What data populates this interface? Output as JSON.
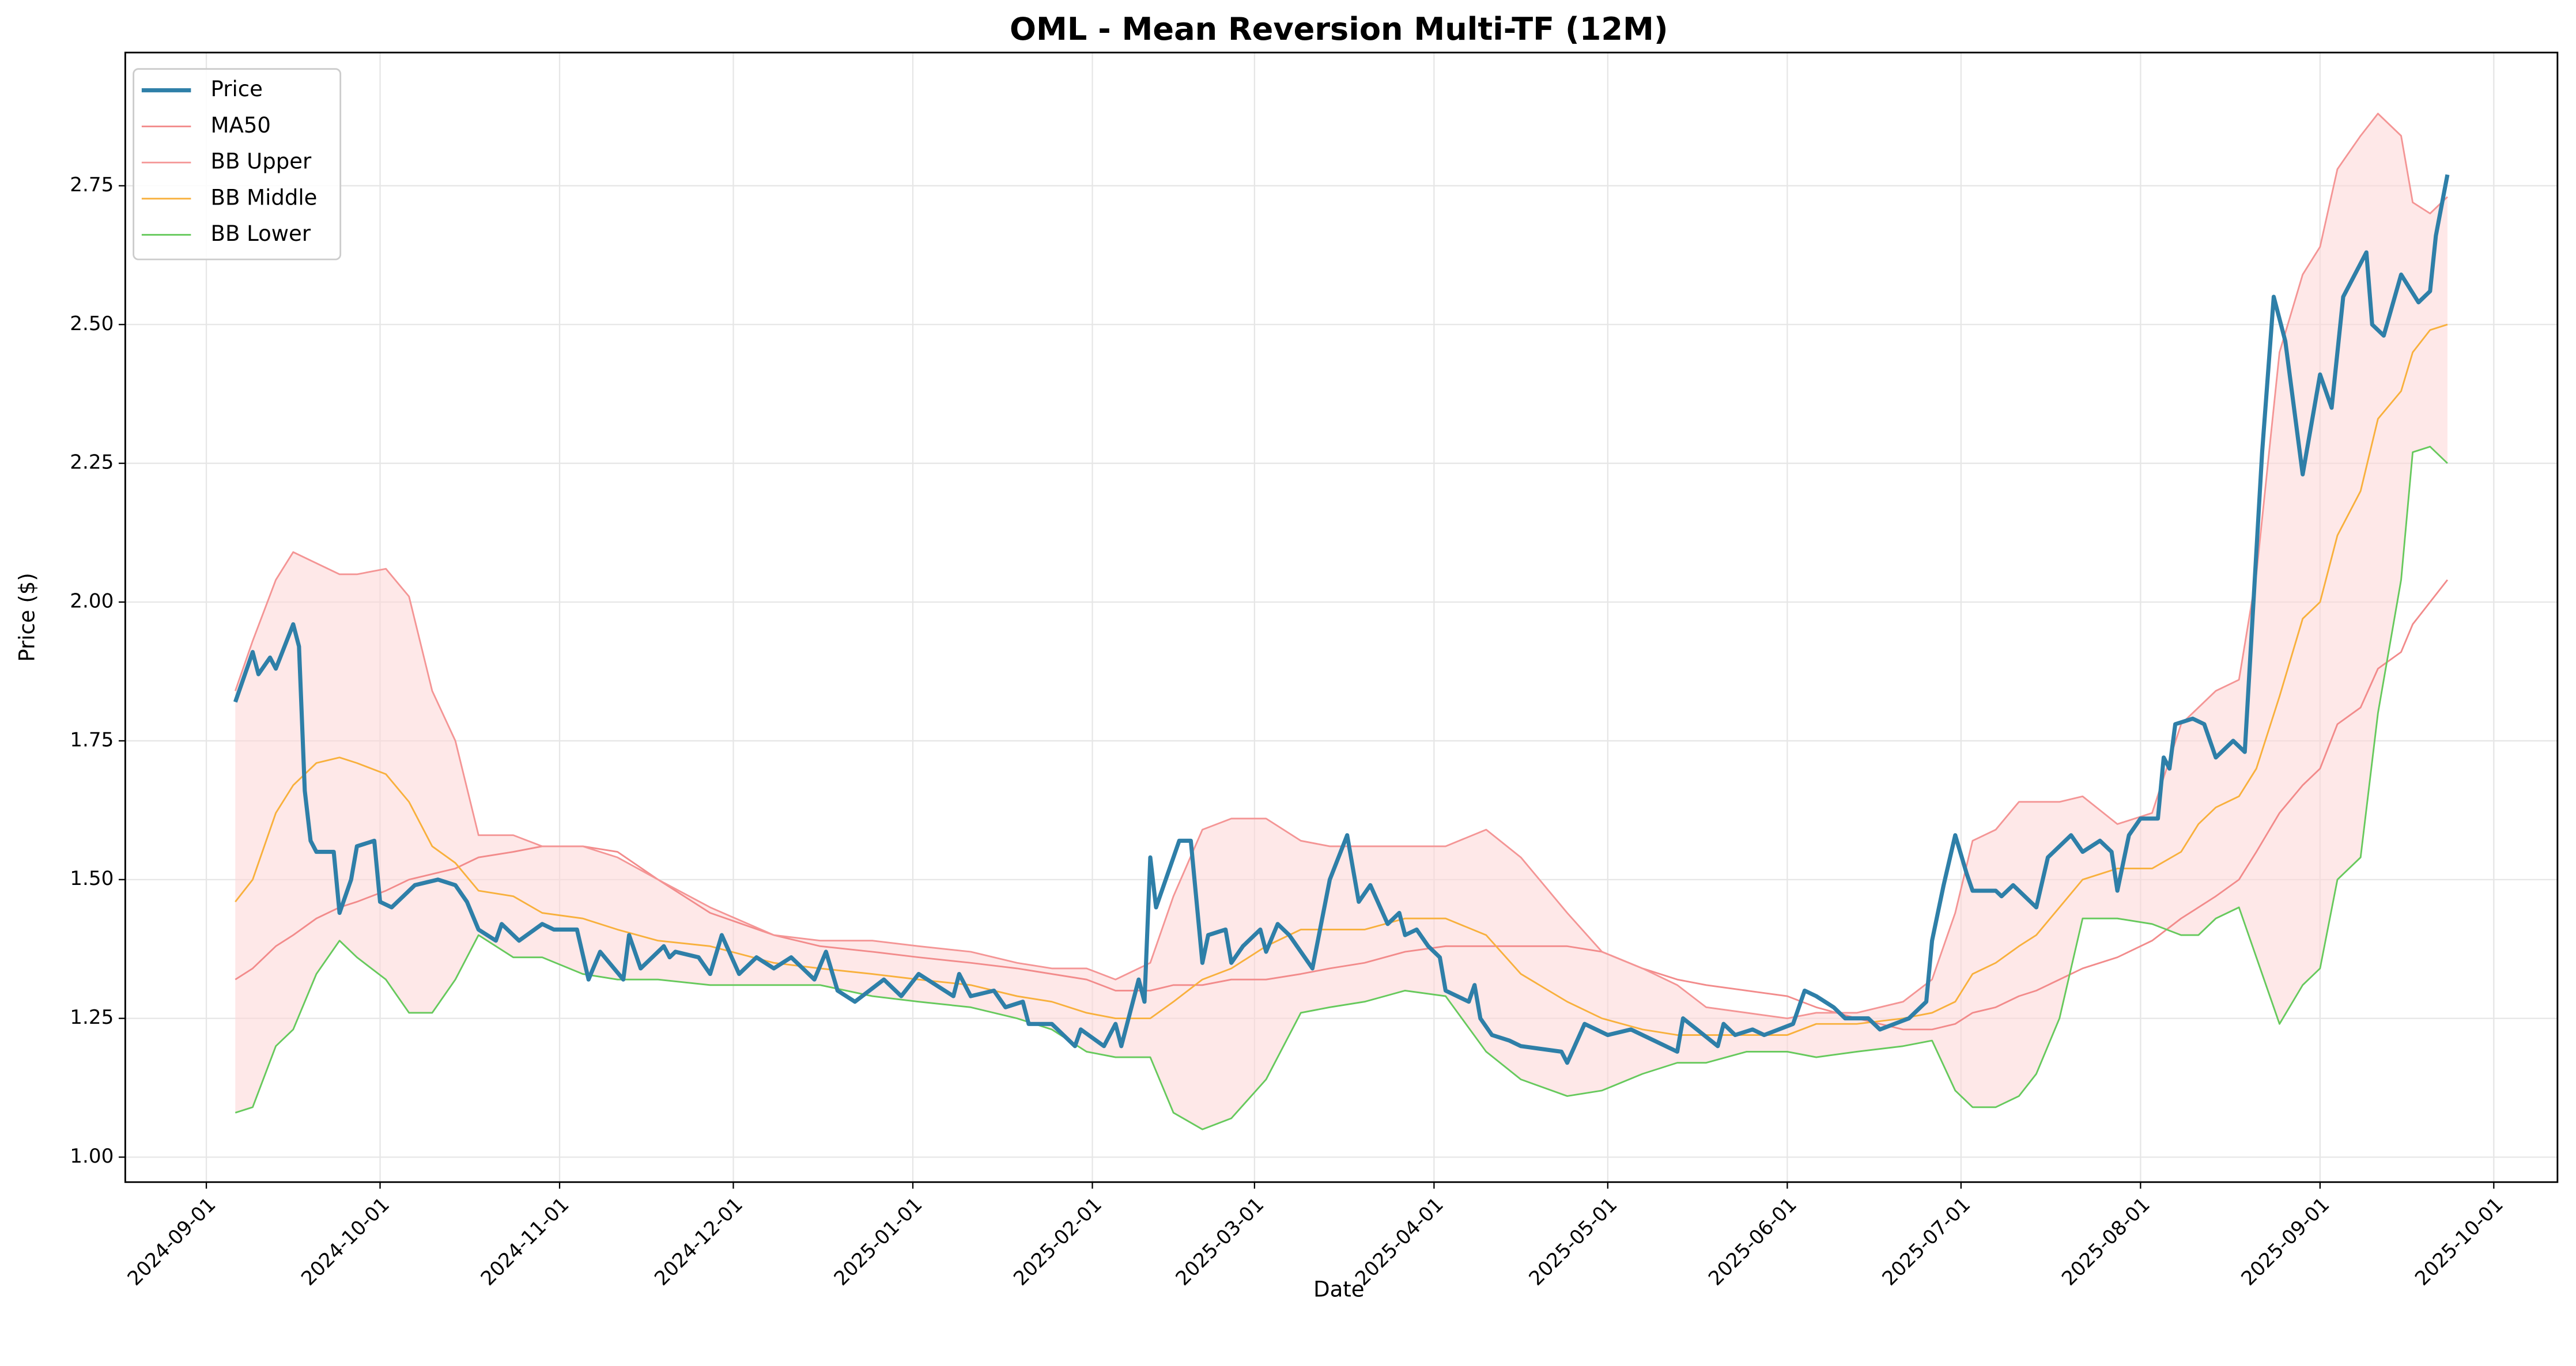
{
  "chart_data": {
    "type": "line",
    "title": "OML - Mean Reversion Multi-TF (12M)",
    "x_label": "Date",
    "y_label": "Price ($)",
    "xlim": [
      "2024-08-18",
      "2025-10-12"
    ],
    "xticks": [
      "2024-09-01",
      "2024-10-01",
      "2024-11-01",
      "2024-12-01",
      "2025-01-01",
      "2025-02-01",
      "2025-03-01",
      "2025-04-01",
      "2025-05-01",
      "2025-06-01",
      "2025-07-01",
      "2025-08-01",
      "2025-09-01",
      "2025-10-01"
    ],
    "ylim": [
      0.955,
      2.99
    ],
    "yticks": [
      {
        "value": 1,
        "label": "1.00"
      },
      1.25,
      {
        "value": 1.5,
        "label": "1.50"
      },
      1.75,
      {
        "value": 2,
        "label": "2.00"
      },
      2.25,
      {
        "value": 2.5,
        "label": "2.50"
      },
      2.75
    ],
    "grid": true,
    "legend": "upper left",
    "fill_between": {
      "series": [
        2,
        4
      ],
      "color": "#fdd6d6"
    },
    "x": [
      "2024-09-06",
      "2024-09-09",
      "2024-09-13",
      "2024-09-16",
      "2024-09-20",
      "2024-09-24",
      "2024-09-27",
      "2024-10-02",
      "2024-10-06",
      "2024-10-10",
      "2024-10-14",
      "2024-10-18",
      "2024-10-24",
      "2024-10-29",
      "2024-11-05",
      "2024-11-11",
      "2024-11-18",
      "2024-11-27",
      "2024-12-08",
      "2024-12-16",
      "2024-12-25",
      "2025-01-02",
      "2025-01-11",
      "2025-01-19",
      "2025-01-25",
      "2025-01-31",
      "2025-02-05",
      "2025-02-11",
      "2025-02-15",
      "2025-02-20",
      "2025-02-25",
      "2025-03-03",
      "2025-03-09",
      "2025-03-14",
      "2025-03-20",
      "2025-03-27",
      "2025-04-03",
      "2025-04-10",
      "2025-04-16",
      "2025-04-24",
      "2025-04-30",
      "2025-05-07",
      "2025-05-13",
      "2025-05-18",
      "2025-05-25",
      "2025-06-01",
      "2025-06-06",
      "2025-06-13",
      "2025-06-21",
      "2025-06-26",
      "2025-06-30",
      "2025-07-03",
      "2025-07-07",
      "2025-07-11",
      "2025-07-14",
      "2025-07-18",
      "2025-07-22",
      "2025-07-28",
      "2025-08-03",
      "2025-08-08",
      "2025-08-11",
      "2025-08-14",
      "2025-08-18",
      "2025-08-21",
      "2025-08-25",
      "2025-08-29",
      "2025-09-01",
      "2025-09-04",
      "2025-09-08",
      "2025-09-11",
      "2025-09-15",
      "2025-09-17",
      "2025-09-20",
      "2025-09-23"
    ],
    "series": [
      {
        "name": "Price",
        "color": "#2e7fa8",
        "linewidth": 2.5,
        "x": [
          "2024-09-06",
          "2024-09-09",
          "2024-09-10",
          "2024-09-12",
          "2024-09-13",
          "2024-09-16",
          "2024-09-17",
          "2024-09-18",
          "2024-09-19",
          "2024-09-20",
          "2024-09-23",
          "2024-09-24",
          "2024-09-26",
          "2024-09-27",
          "2024-09-30",
          "2024-10-01",
          "2024-10-03",
          "2024-10-07",
          "2024-10-11",
          "2024-10-14",
          "2024-10-16",
          "2024-10-18",
          "2024-10-21",
          "2024-10-22",
          "2024-10-24",
          "2024-10-25",
          "2024-10-29",
          "2024-10-31",
          "2024-11-04",
          "2024-11-06",
          "2024-11-08",
          "2024-11-12",
          "2024-11-13",
          "2024-11-15",
          "2024-11-19",
          "2024-11-20",
          "2024-11-21",
          "2024-11-25",
          "2024-11-27",
          "2024-11-29",
          "2024-12-02",
          "2024-12-05",
          "2024-12-08",
          "2024-12-11",
          "2024-12-15",
          "2024-12-17",
          "2024-12-19",
          "2024-12-22",
          "2024-12-27",
          "2024-12-30",
          "2025-01-02",
          "2025-01-08",
          "2025-01-09",
          "2025-01-11",
          "2025-01-15",
          "2025-01-17",
          "2025-01-20",
          "2025-01-21",
          "2025-01-25",
          "2025-01-29",
          "2025-01-30",
          "2025-02-03",
          "2025-02-05",
          "2025-02-06",
          "2025-02-09",
          "2025-02-10",
          "2025-02-11",
          "2025-02-12",
          "2025-02-16",
          "2025-02-18",
          "2025-02-20",
          "2025-02-21",
          "2025-02-24",
          "2025-02-25",
          "2025-02-27",
          "2025-03-02",
          "2025-03-03",
          "2025-03-05",
          "2025-03-07",
          "2025-03-11",
          "2025-03-14",
          "2025-03-17",
          "2025-03-18",
          "2025-03-19",
          "2025-03-21",
          "2025-03-24",
          "2025-03-26",
          "2025-03-27",
          "2025-03-29",
          "2025-03-31",
          "2025-04-02",
          "2025-04-03",
          "2025-04-07",
          "2025-04-08",
          "2025-04-09",
          "2025-04-11",
          "2025-04-14",
          "2025-04-16",
          "2025-04-23",
          "2025-04-24",
          "2025-04-27",
          "2025-05-01",
          "2025-05-05",
          "2025-05-09",
          "2025-05-13",
          "2025-05-14",
          "2025-05-20",
          "2025-05-21",
          "2025-05-23",
          "2025-05-26",
          "2025-05-28",
          "2025-06-02",
          "2025-06-04",
          "2025-06-06",
          "2025-06-09",
          "2025-06-11",
          "2025-06-15",
          "2025-06-17",
          "2025-06-22",
          "2025-06-25",
          "2025-06-26",
          "2025-06-28",
          "2025-06-30",
          "2025-07-02",
          "2025-07-03",
          "2025-07-07",
          "2025-07-08",
          "2025-07-10",
          "2025-07-14",
          "2025-07-16",
          "2025-07-20",
          "2025-07-22",
          "2025-07-25",
          "2025-07-27",
          "2025-07-28",
          "2025-07-30",
          "2025-08-01",
          "2025-08-04",
          "2025-08-05",
          "2025-08-06",
          "2025-08-07",
          "2025-08-10",
          "2025-08-12",
          "2025-08-14",
          "2025-08-17",
          "2025-08-19",
          "2025-08-22",
          "2025-08-24",
          "2025-08-26",
          "2025-08-29",
          "2025-09-01",
          "2025-09-03",
          "2025-09-05",
          "2025-09-09",
          "2025-09-10",
          "2025-09-12",
          "2025-09-15",
          "2025-09-18",
          "2025-09-20",
          "2025-09-21",
          "2025-09-23"
        ],
        "values": [
          1.82,
          1.91,
          1.87,
          1.9,
          1.88,
          1.96,
          1.92,
          1.66,
          1.57,
          1.55,
          1.55,
          1.44,
          1.5,
          1.56,
          1.57,
          1.46,
          1.45,
          1.49,
          1.5,
          1.49,
          1.46,
          1.41,
          1.39,
          1.42,
          1.4,
          1.39,
          1.42,
          1.41,
          1.41,
          1.32,
          1.37,
          1.32,
          1.4,
          1.34,
          1.38,
          1.36,
          1.37,
          1.36,
          1.33,
          1.4,
          1.33,
          1.36,
          1.34,
          1.36,
          1.32,
          1.37,
          1.3,
          1.28,
          1.32,
          1.29,
          1.33,
          1.29,
          1.33,
          1.29,
          1.3,
          1.27,
          1.28,
          1.24,
          1.24,
          1.2,
          1.23,
          1.2,
          1.24,
          1.2,
          1.32,
          1.28,
          1.54,
          1.45,
          1.57,
          1.57,
          1.35,
          1.4,
          1.41,
          1.35,
          1.38,
          1.41,
          1.37,
          1.42,
          1.4,
          1.34,
          1.5,
          1.58,
          1.52,
          1.46,
          1.49,
          1.42,
          1.44,
          1.4,
          1.41,
          1.38,
          1.36,
          1.3,
          1.28,
          1.31,
          1.25,
          1.22,
          1.21,
          1.2,
          1.19,
          1.17,
          1.24,
          1.22,
          1.23,
          1.21,
          1.19,
          1.25,
          1.2,
          1.24,
          1.22,
          1.23,
          1.22,
          1.24,
          1.3,
          1.29,
          1.27,
          1.25,
          1.25,
          1.23,
          1.25,
          1.28,
          1.39,
          1.49,
          1.58,
          1.51,
          1.48,
          1.48,
          1.47,
          1.49,
          1.45,
          1.54,
          1.58,
          1.55,
          1.57,
          1.55,
          1.48,
          1.58,
          1.61,
          1.61,
          1.72,
          1.7,
          1.78,
          1.79,
          1.78,
          1.72,
          1.75,
          1.73,
          2.27,
          2.55,
          2.47,
          2.23,
          2.41,
          2.35,
          2.55,
          2.63,
          2.5,
          2.48,
          2.59,
          2.54,
          2.56,
          2.66,
          2.77
        ]
      },
      {
        "name": "MA50",
        "color": "#f28b8b",
        "linewidth": 1,
        "values": [
          1.32,
          1.34,
          1.38,
          1.4,
          1.43,
          1.45,
          1.46,
          1.48,
          1.5,
          1.51,
          1.52,
          1.54,
          1.55,
          1.56,
          1.56,
          1.55,
          1.5,
          1.44,
          1.4,
          1.38,
          1.37,
          1.36,
          1.35,
          1.34,
          1.33,
          1.32,
          1.3,
          1.3,
          1.31,
          1.31,
          1.32,
          1.32,
          1.33,
          1.34,
          1.35,
          1.37,
          1.38,
          1.38,
          1.38,
          1.38,
          1.37,
          1.34,
          1.32,
          1.31,
          1.3,
          1.29,
          1.27,
          1.25,
          1.23,
          1.23,
          1.24,
          1.26,
          1.27,
          1.29,
          1.3,
          1.32,
          1.34,
          1.36,
          1.39,
          1.43,
          1.45,
          1.47,
          1.5,
          1.55,
          1.62,
          1.67,
          1.7,
          1.78,
          1.81,
          1.88,
          1.91,
          1.96,
          2.0,
          2.04
        ]
      },
      {
        "name": "BB Upper",
        "color": "#f49595",
        "linewidth": 1,
        "values": [
          1.84,
          1.93,
          2.04,
          2.09,
          2.07,
          2.05,
          2.05,
          2.06,
          2.01,
          1.84,
          1.75,
          1.58,
          1.58,
          1.56,
          1.56,
          1.54,
          1.5,
          1.45,
          1.4,
          1.39,
          1.39,
          1.38,
          1.37,
          1.35,
          1.34,
          1.34,
          1.32,
          1.35,
          1.47,
          1.59,
          1.61,
          1.61,
          1.57,
          1.56,
          1.56,
          1.56,
          1.56,
          1.59,
          1.54,
          1.44,
          1.37,
          1.34,
          1.31,
          1.27,
          1.26,
          1.25,
          1.26,
          1.26,
          1.28,
          1.32,
          1.44,
          1.57,
          1.59,
          1.64,
          1.64,
          1.64,
          1.65,
          1.6,
          1.62,
          1.78,
          1.81,
          1.84,
          1.86,
          2.05,
          2.45,
          2.59,
          2.64,
          2.78,
          2.84,
          2.88,
          2.84,
          2.72,
          2.7,
          2.73
        ]
      },
      {
        "name": "BB Middle",
        "color": "#f8b03c",
        "linewidth": 1,
        "values": [
          1.46,
          1.5,
          1.62,
          1.67,
          1.71,
          1.72,
          1.71,
          1.69,
          1.64,
          1.56,
          1.53,
          1.48,
          1.47,
          1.44,
          1.43,
          1.41,
          1.39,
          1.38,
          1.35,
          1.34,
          1.33,
          1.32,
          1.31,
          1.29,
          1.28,
          1.26,
          1.25,
          1.25,
          1.28,
          1.32,
          1.34,
          1.38,
          1.41,
          1.41,
          1.41,
          1.43,
          1.43,
          1.4,
          1.33,
          1.28,
          1.25,
          1.23,
          1.22,
          1.22,
          1.22,
          1.22,
          1.24,
          1.24,
          1.25,
          1.26,
          1.28,
          1.33,
          1.35,
          1.38,
          1.4,
          1.45,
          1.5,
          1.52,
          1.52,
          1.55,
          1.6,
          1.63,
          1.65,
          1.7,
          1.83,
          1.97,
          2.0,
          2.12,
          2.2,
          2.33,
          2.38,
          2.45,
          2.49,
          2.5
        ]
      },
      {
        "name": "BB Lower",
        "color": "#66c95c",
        "linewidth": 1,
        "values": [
          1.08,
          1.09,
          1.2,
          1.23,
          1.33,
          1.39,
          1.36,
          1.32,
          1.26,
          1.26,
          1.32,
          1.4,
          1.36,
          1.36,
          1.33,
          1.32,
          1.32,
          1.31,
          1.31,
          1.31,
          1.29,
          1.28,
          1.27,
          1.25,
          1.23,
          1.19,
          1.18,
          1.18,
          1.08,
          1.05,
          1.07,
          1.14,
          1.26,
          1.27,
          1.28,
          1.3,
          1.29,
          1.19,
          1.14,
          1.11,
          1.12,
          1.15,
          1.17,
          1.17,
          1.19,
          1.19,
          1.18,
          1.19,
          1.2,
          1.21,
          1.12,
          1.09,
          1.09,
          1.11,
          1.15,
          1.25,
          1.43,
          1.43,
          1.42,
          1.4,
          1.4,
          1.43,
          1.45,
          1.36,
          1.24,
          1.31,
          1.34,
          1.5,
          1.54,
          1.8,
          2.04,
          2.27,
          2.28,
          2.25
        ]
      }
    ]
  }
}
